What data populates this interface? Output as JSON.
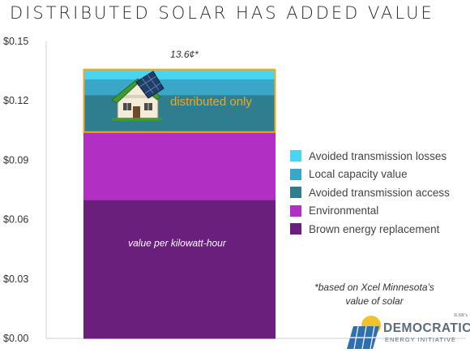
{
  "title": "DISTRIBUTED SOLAR HAS ADDED VALUE",
  "chart_data": {
    "type": "bar",
    "stacked": true,
    "categories": [
      ""
    ],
    "ylim": [
      0,
      0.15
    ],
    "yticks": [
      "$0.00",
      "$0.03",
      "$0.06",
      "$0.09",
      "$0.12",
      "$0.15"
    ],
    "grid": false,
    "legend_position": "right",
    "series": [
      {
        "name": "Brown energy replacement",
        "values": [
          0.07
        ],
        "color": "#6b1f7c"
      },
      {
        "name": "Environmental",
        "values": [
          0.034
        ],
        "color": "#b12fc2"
      },
      {
        "name": "Avoided transmission access",
        "values": [
          0.019
        ],
        "color": "#2e7e90"
      },
      {
        "name": "Local capacity value",
        "values": [
          0.008
        ],
        "color": "#3aa6c8"
      },
      {
        "name": "Avoided transmission losses",
        "values": [
          0.005
        ],
        "color": "#4ad4f2"
      }
    ],
    "total_label": "13.6¢*",
    "annotations": {
      "distributed": "distributed only",
      "base": "value per kilowatt-hour"
    },
    "highlight_color": "#f0a81c"
  },
  "footnote": {
    "line1": "*based on Xcel Minnesota’s",
    "line2": "value of solar"
  },
  "logo": {
    "tag": "ILSR’s",
    "main": "DEMOCRATIC",
    "sub": "ENERGY INITIATIVE",
    "icon": "solar-panel-sun-icon"
  },
  "house_icon": "house-with-solar-roof-icon"
}
